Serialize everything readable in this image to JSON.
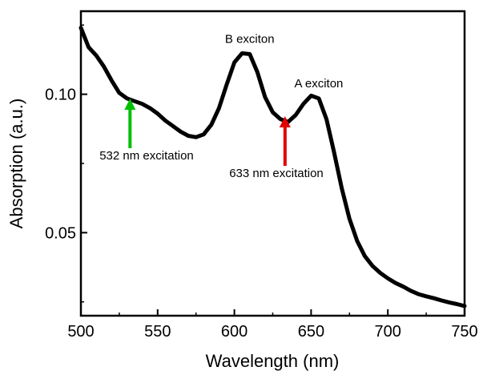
{
  "chart_data": {
    "type": "line",
    "xlabel": "Wavelength (nm)",
    "ylabel": "Absorption (a.u.)",
    "xlim": [
      500,
      750
    ],
    "ylim": [
      0.02,
      0.13
    ],
    "x_ticks": [
      500,
      550,
      600,
      650,
      700,
      750
    ],
    "x_tick_labels": [
      "500",
      "550",
      "600",
      "650",
      "700",
      "750"
    ],
    "y_ticks": [
      0.05,
      0.1
    ],
    "y_tick_labels": [
      "0.05",
      "0.10"
    ],
    "grid": false,
    "line_color": "#000000",
    "series": [
      {
        "x": [
          500,
          505,
          510,
          515,
          520,
          525,
          530,
          535,
          540,
          545,
          550,
          555,
          560,
          565,
          570,
          575,
          580,
          585,
          590,
          595,
          600,
          605,
          610,
          615,
          620,
          625,
          630,
          635,
          640,
          645,
          650,
          655,
          660,
          665,
          670,
          675,
          680,
          685,
          690,
          695,
          700,
          705,
          710,
          715,
          720,
          725,
          730,
          735,
          740,
          745,
          750
        ],
        "y": [
          0.124,
          0.117,
          0.114,
          0.11,
          0.105,
          0.1005,
          0.0985,
          0.0975,
          0.0965,
          0.095,
          0.093,
          0.0905,
          0.0885,
          0.0865,
          0.085,
          0.0845,
          0.0855,
          0.089,
          0.095,
          0.1035,
          0.1115,
          0.1148,
          0.1145,
          0.108,
          0.099,
          0.0935,
          0.091,
          0.09,
          0.0925,
          0.0965,
          0.0995,
          0.0985,
          0.091,
          0.079,
          0.066,
          0.055,
          0.047,
          0.0415,
          0.038,
          0.0355,
          0.0335,
          0.0318,
          0.0305,
          0.029,
          0.0278,
          0.027,
          0.0263,
          0.0255,
          0.0248,
          0.0242,
          0.0235
        ]
      }
    ],
    "annotations": [
      {
        "text": "B exciton",
        "x": 610,
        "y": 0.1185
      },
      {
        "text": "A exciton",
        "x": 655,
        "y": 0.1025
      }
    ],
    "arrows": [
      {
        "label": "532 nm excitation",
        "x": 532,
        "color": "#00c000"
      },
      {
        "label": "633 nm excitation",
        "x": 633,
        "color": "#e00000"
      }
    ]
  }
}
